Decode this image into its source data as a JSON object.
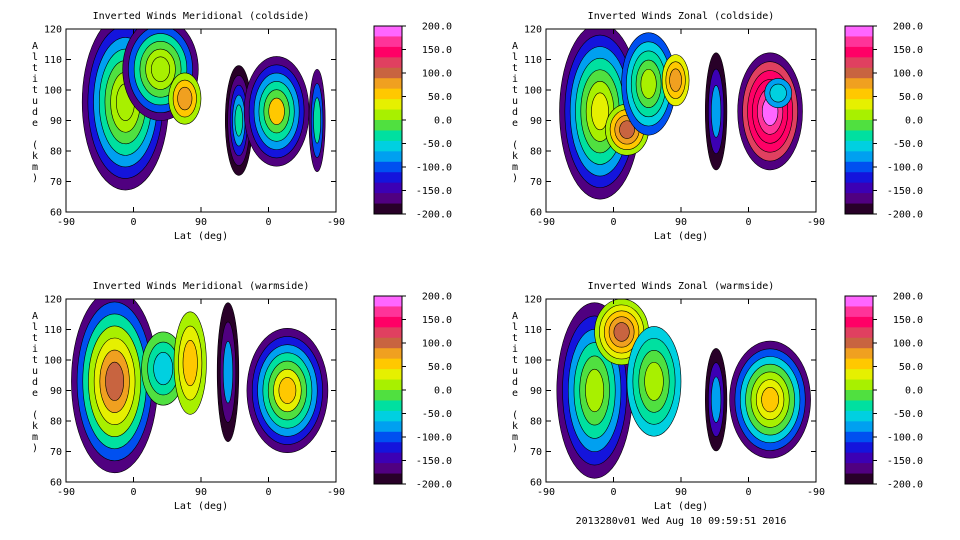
{
  "footer": "2013280v01 Wed Aug 10 09:59:51 2016",
  "colorbar": {
    "labels": [
      "200.0",
      "150.0",
      "100.0",
      "50.0",
      "0.0",
      "-50.0",
      "-100.0",
      "-150.0",
      "-200.0"
    ],
    "colors": [
      "#ff66ff",
      "#ff3399",
      "#ff0066",
      "#e04060",
      "#c86440",
      "#f0a020",
      "#ffc800",
      "#e6f000",
      "#a8f000",
      "#50e040",
      "#00e0a0",
      "#00d0e0",
      "#00a0f0",
      "#0050f0",
      "#1414dc",
      "#3c00b4",
      "#500080",
      "#280028"
    ]
  },
  "chart_data": [
    {
      "type": "heatmap",
      "title": "Inverted Winds Meridional (coldside)",
      "xlabel": "Lat (deg)",
      "ylabel": "Altitude (km)",
      "xticks": [
        "-90",
        "0",
        "90",
        "0",
        "-90"
      ],
      "yticks": [
        "120",
        "110",
        "100",
        "90",
        "80",
        "70",
        "60"
      ],
      "ylim": [
        60,
        120
      ],
      "colorbar_range": [
        -200,
        200
      ]
    },
    {
      "type": "heatmap",
      "title": "Inverted Winds Zonal (coldside)",
      "xlabel": "Lat (deg)",
      "ylabel": "Altitude (km)",
      "xticks": [
        "-90",
        "0",
        "90",
        "0",
        "-90"
      ],
      "yticks": [
        "120",
        "110",
        "100",
        "90",
        "80",
        "70",
        "60"
      ],
      "ylim": [
        60,
        120
      ],
      "colorbar_range": [
        -200,
        200
      ]
    },
    {
      "type": "heatmap",
      "title": "Inverted Winds Meridional (warmside)",
      "xlabel": "Lat (deg)",
      "ylabel": "Altitude (km)",
      "xticks": [
        "-90",
        "0",
        "90",
        "0",
        "-90"
      ],
      "yticks": [
        "120",
        "110",
        "100",
        "90",
        "80",
        "70",
        "60"
      ],
      "ylim": [
        60,
        120
      ],
      "colorbar_range": [
        -200,
        200
      ]
    },
    {
      "type": "heatmap",
      "title": "Inverted Winds Zonal (warmside)",
      "xlabel": "Lat (deg)",
      "ylabel": "Altitude (km)",
      "xticks": [
        "-90",
        "0",
        "90",
        "0",
        "-90"
      ],
      "yticks": [
        "120",
        "110",
        "100",
        "90",
        "80",
        "70",
        "60"
      ],
      "ylim": [
        60,
        120
      ],
      "colorbar_range": [
        -200,
        200
      ]
    }
  ]
}
